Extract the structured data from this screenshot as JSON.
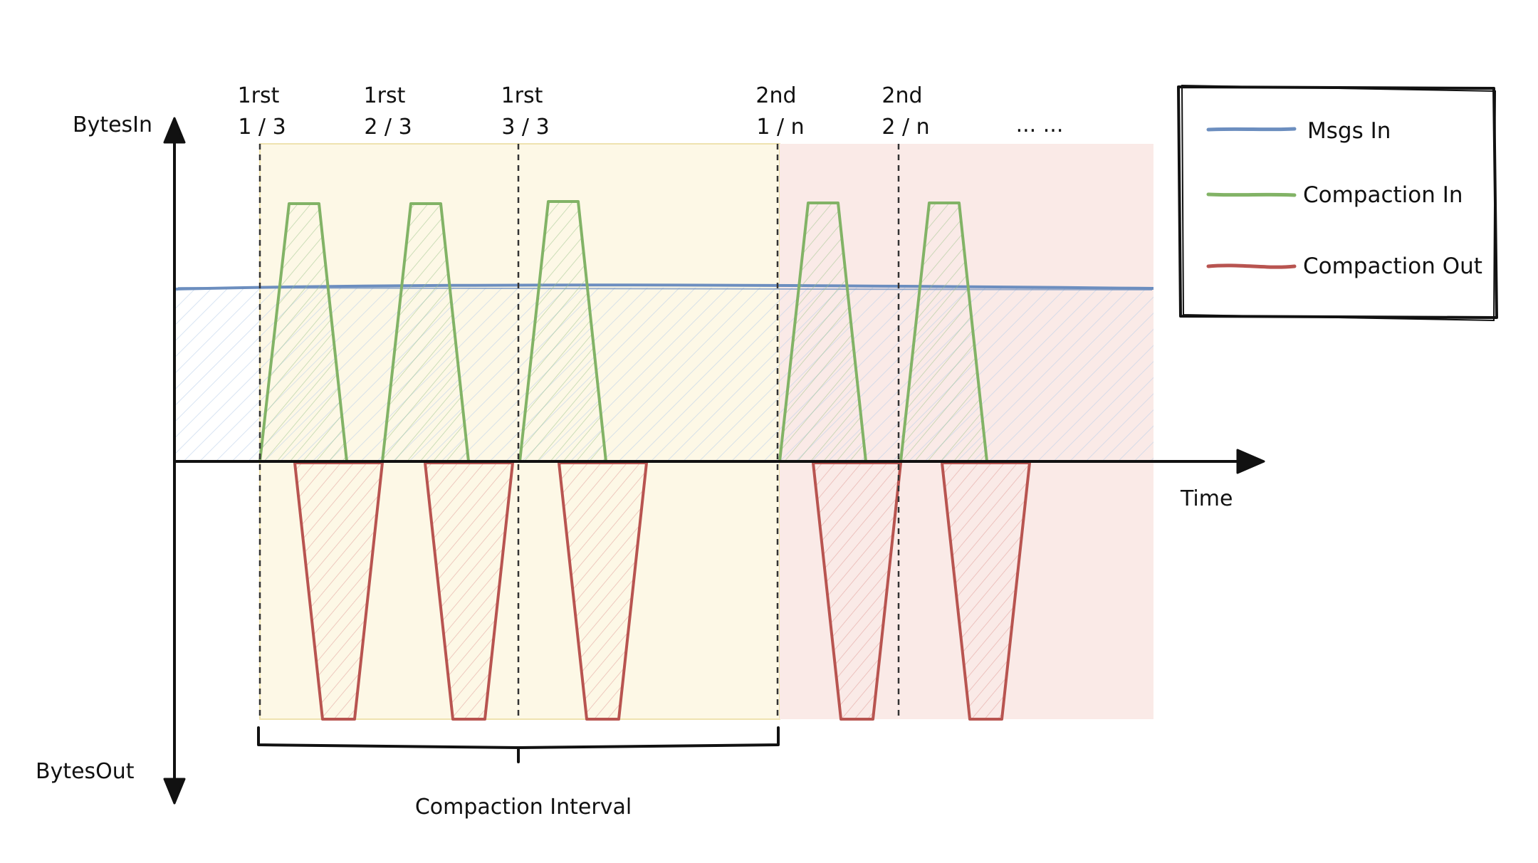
{
  "axes": {
    "y_top_label": "BytesIn",
    "y_bottom_label": "BytesOut",
    "x_label": "Time"
  },
  "phases": [
    {
      "line1": "1rst",
      "line2": "1 / 3"
    },
    {
      "line1": "1rst",
      "line2": "2 / 3"
    },
    {
      "line1": "1rst",
      "line2": "3 / 3"
    },
    {
      "line1": "2nd",
      "line2": "1 / n"
    },
    {
      "line1": "2nd",
      "line2": "2 / n"
    },
    {
      "line1": "",
      "line2": "... ..."
    }
  ],
  "bracket_label": "Compaction Interval",
  "legend": {
    "items": [
      {
        "label": "Msgs In",
        "color": "#6c8ebf"
      },
      {
        "label": "Compaction In",
        "color": "#82b366"
      },
      {
        "label": "Compaction Out",
        "color": "#b85450"
      }
    ]
  },
  "colors": {
    "first_interval_fill": "#fdf7e3",
    "second_interval_fill": "#f9e5e3",
    "msgs_in_fill": "#dae8fc",
    "compaction_in_fill": "#d5e8d4",
    "compaction_out_fill": "#f8cecc"
  }
}
